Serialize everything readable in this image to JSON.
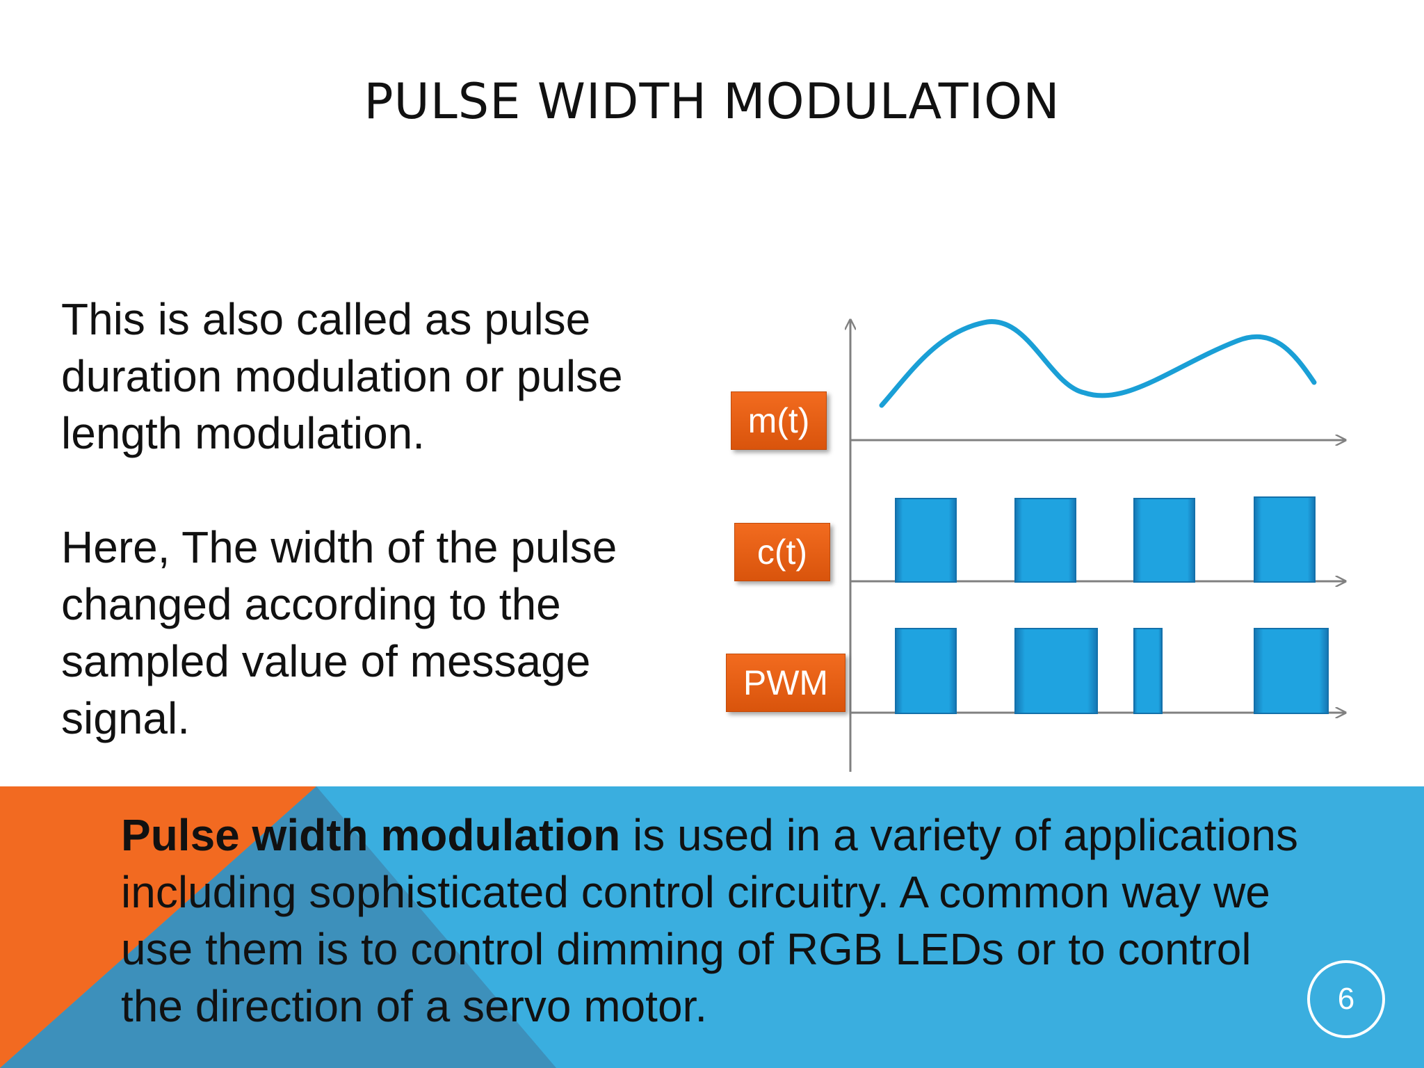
{
  "slide": {
    "title": "PULSE WIDTH MODULATION",
    "paragraphs": [
      "This is also called as pulse duration modulation or pulse length modulation.",
      "Here, The width of the pulse changed according to the sampled value of message signal."
    ],
    "footer": {
      "bold_lead": "Pulse width modulation",
      "text": " is used in a variety of applications including sophisticated control circuitry. A common way we use them is to control dimming of RGB LEDs or to control the direction of a servo motor."
    },
    "page_number": "6"
  },
  "diagram": {
    "labels": {
      "message": "m(t)",
      "carrier": "c(t)",
      "pwm": "PWM"
    },
    "colors": {
      "wave": "#1a9fd6",
      "pulse": "#1fa3e0",
      "label": "#e8601a",
      "axis": "#808080",
      "band_blue": "#3aaedf",
      "band_orange": "#f26a21"
    }
  }
}
